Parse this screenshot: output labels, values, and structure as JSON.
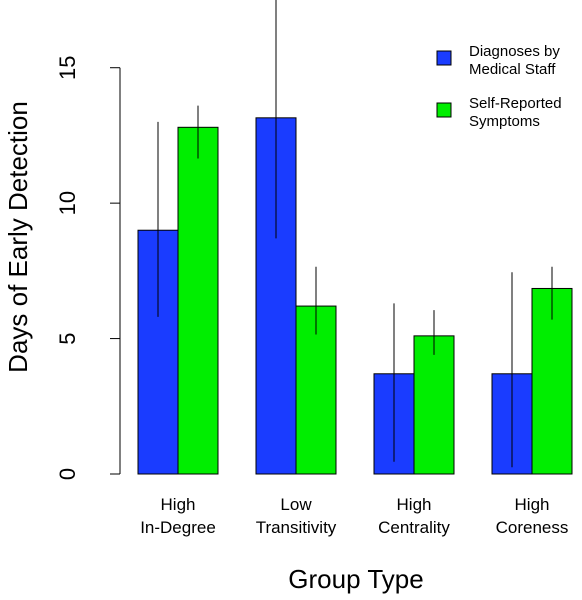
{
  "chart_data": {
    "type": "bar",
    "title": "",
    "xlabel": "Group Type",
    "ylabel": "Days of Early Detection",
    "ylim": [
      0,
      17.5
    ],
    "yticks": [
      0,
      5,
      10,
      15
    ],
    "grid": false,
    "legend_position": "top-right",
    "categories": [
      [
        "High",
        "In-Degree"
      ],
      [
        "Low",
        "Transitivity"
      ],
      [
        "High",
        "Centrality"
      ],
      [
        "High",
        "Coreness"
      ]
    ],
    "series": [
      {
        "name": [
          "Diagnoses by",
          "Medical Staff"
        ],
        "color": "#1a3cff",
        "values": [
          9.0,
          13.15,
          3.7,
          3.7
        ],
        "error_low": [
          5.8,
          8.7,
          0.45,
          0.25
        ],
        "error_high": [
          13.0,
          17.9,
          6.3,
          7.45
        ]
      },
      {
        "name": [
          "Self-Reported",
          "Symptoms"
        ],
        "color": "#00ee00",
        "values": [
          12.8,
          6.2,
          5.1,
          6.85
        ],
        "error_low": [
          11.65,
          5.15,
          4.4,
          5.7
        ],
        "error_high": [
          13.6,
          7.65,
          6.05,
          7.65
        ]
      }
    ]
  }
}
